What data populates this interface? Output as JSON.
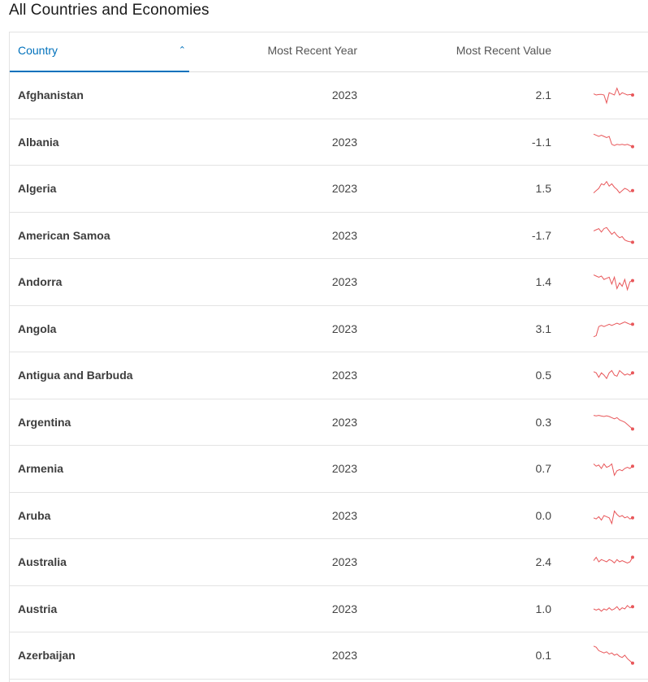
{
  "page": {
    "title": "All Countries and Economies"
  },
  "table": {
    "headers": {
      "country": "Country",
      "year": "Most Recent Year",
      "value": "Most Recent Value"
    },
    "sort_icon": "chevron-up-icon",
    "accent_color": "#0071bc",
    "spark_color": "#e8575a",
    "rows": [
      {
        "country": "Afghanistan",
        "year": "2023",
        "value": "2.1",
        "spark": [
          0.45,
          0.5,
          0.48,
          0.47,
          0.5,
          0.85,
          0.4,
          0.45,
          0.5,
          0.2,
          0.5,
          0.4,
          0.45,
          0.5,
          0.48,
          0.5
        ]
      },
      {
        "country": "Albania",
        "year": "2023",
        "value": "-1.1",
        "spark": [
          0.15,
          0.2,
          0.25,
          0.2,
          0.25,
          0.3,
          0.25,
          0.6,
          0.65,
          0.6,
          0.62,
          0.6,
          0.63,
          0.6,
          0.65,
          0.7
        ]
      },
      {
        "country": "Algeria",
        "year": "2023",
        "value": "1.5",
        "spark": [
          0.7,
          0.6,
          0.5,
          0.3,
          0.35,
          0.2,
          0.4,
          0.3,
          0.45,
          0.55,
          0.7,
          0.6,
          0.5,
          0.55,
          0.65,
          0.6
        ]
      },
      {
        "country": "American Samoa",
        "year": "2023",
        "value": "-1.7",
        "spark": [
          0.3,
          0.25,
          0.2,
          0.35,
          0.2,
          0.15,
          0.3,
          0.45,
          0.35,
          0.5,
          0.6,
          0.55,
          0.7,
          0.75,
          0.78,
          0.8
        ]
      },
      {
        "country": "Andorra",
        "year": "2023",
        "value": "1.4",
        "spark": [
          0.2,
          0.25,
          0.3,
          0.25,
          0.4,
          0.35,
          0.3,
          0.6,
          0.3,
          0.8,
          0.55,
          0.7,
          0.4,
          0.85,
          0.5,
          0.45
        ]
      },
      {
        "country": "Angola",
        "year": "2023",
        "value": "3.1",
        "spark": [
          0.85,
          0.8,
          0.4,
          0.35,
          0.4,
          0.35,
          0.3,
          0.35,
          0.3,
          0.25,
          0.3,
          0.25,
          0.2,
          0.25,
          0.3,
          0.3
        ]
      },
      {
        "country": "Antigua and Barbuda",
        "year": "2023",
        "value": "0.5",
        "spark": [
          0.35,
          0.4,
          0.6,
          0.4,
          0.5,
          0.65,
          0.4,
          0.3,
          0.5,
          0.55,
          0.3,
          0.4,
          0.5,
          0.45,
          0.5,
          0.4
        ]
      },
      {
        "country": "Argentina",
        "year": "2023",
        "value": "0.3",
        "spark": [
          0.2,
          0.22,
          0.2,
          0.23,
          0.25,
          0.22,
          0.25,
          0.3,
          0.35,
          0.3,
          0.4,
          0.45,
          0.5,
          0.6,
          0.7,
          0.8
        ]
      },
      {
        "country": "Armenia",
        "year": "2023",
        "value": "0.7",
        "spark": [
          0.3,
          0.4,
          0.35,
          0.5,
          0.3,
          0.45,
          0.4,
          0.3,
          0.8,
          0.6,
          0.55,
          0.6,
          0.5,
          0.45,
          0.5,
          0.4
        ]
      },
      {
        "country": "Aruba",
        "year": "2023",
        "value": "0.0",
        "spark": [
          0.6,
          0.65,
          0.55,
          0.7,
          0.5,
          0.55,
          0.6,
          0.85,
          0.3,
          0.45,
          0.55,
          0.5,
          0.6,
          0.55,
          0.65,
          0.6
        ]
      },
      {
        "country": "Australia",
        "year": "2023",
        "value": "2.4",
        "spark": [
          0.45,
          0.3,
          0.5,
          0.4,
          0.45,
          0.5,
          0.4,
          0.45,
          0.55,
          0.4,
          0.5,
          0.45,
          0.5,
          0.55,
          0.5,
          0.3
        ]
      },
      {
        "country": "Austria",
        "year": "2023",
        "value": "1.0",
        "spark": [
          0.5,
          0.55,
          0.5,
          0.6,
          0.5,
          0.55,
          0.45,
          0.55,
          0.5,
          0.4,
          0.55,
          0.45,
          0.5,
          0.35,
          0.45,
          0.4
        ]
      },
      {
        "country": "Azerbaijan",
        "year": "2023",
        "value": "0.1",
        "spark": [
          0.1,
          0.15,
          0.3,
          0.35,
          0.4,
          0.35,
          0.45,
          0.4,
          0.5,
          0.45,
          0.55,
          0.6,
          0.5,
          0.65,
          0.75,
          0.85
        ]
      }
    ]
  }
}
